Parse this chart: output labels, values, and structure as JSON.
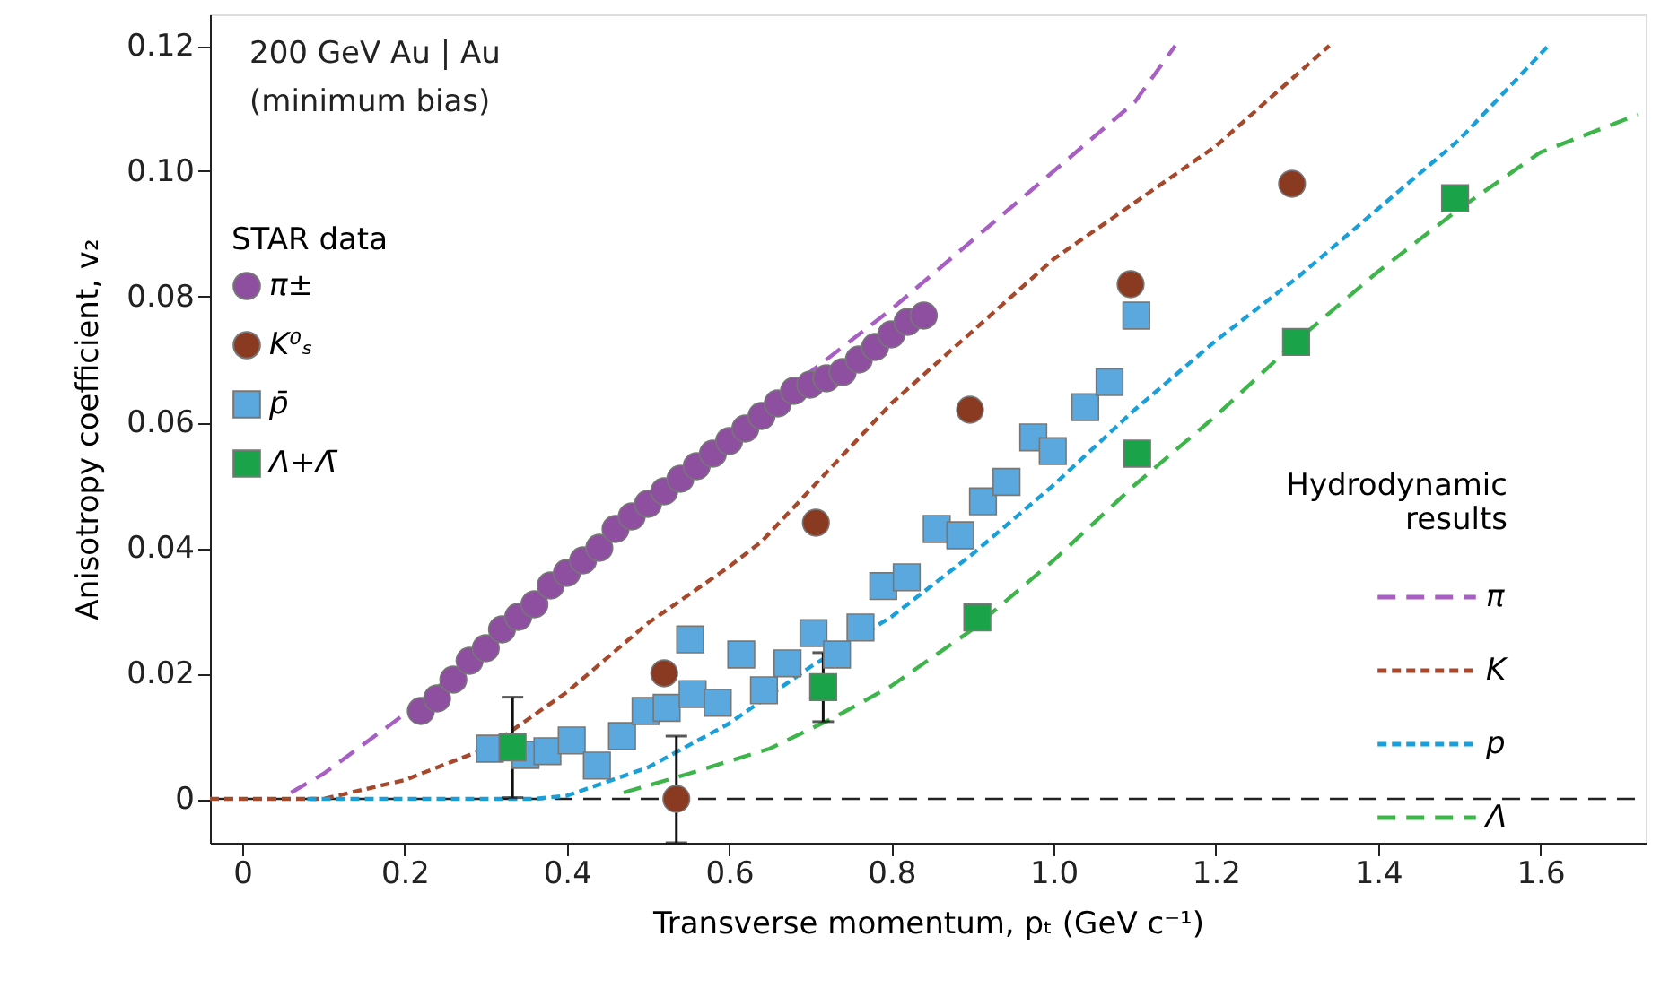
{
  "chart_data": {
    "type": "scatter",
    "xlabel": "Transverse momentum, pₜ (GeV c⁻¹)",
    "ylabel": "Anisotropy coefficient, v₂",
    "legend_title": "STAR data",
    "annotations": [
      "200 GeV Au | Au",
      "(minimum bias)",
      "Hydrodynamic results"
    ],
    "xlim": [
      -0.04,
      1.73
    ],
    "ylim": [
      -0.007,
      0.125
    ],
    "xticks": [
      0,
      0.2,
      0.4,
      0.6,
      0.8,
      {
        "value": 1,
        "label": "1.0"
      },
      1.2,
      1.4,
      1.6
    ],
    "yticks": [
      0,
      0.02,
      0.04,
      0.06,
      0.08,
      {
        "value": 0.1,
        "label": "0.10"
      },
      0.12
    ],
    "grid": false,
    "legend": "left",
    "ref_lines": [
      {
        "axis": "y",
        "value": 0,
        "label": null,
        "color": "#222222",
        "line_style": "dashed"
      }
    ],
    "series": [
      {
        "name": "π±",
        "marker": "circle",
        "color": "#8e4fa0",
        "x": [
          0.22,
          0.24,
          0.26,
          0.28,
          0.3,
          0.32,
          0.34,
          0.36,
          0.38,
          0.4,
          0.42,
          0.44,
          0.46,
          0.48,
          0.5,
          0.52,
          0.54,
          0.56,
          0.58,
          0.6,
          0.62,
          0.64,
          0.66,
          0.68,
          0.7,
          0.72,
          0.74,
          0.76,
          0.78,
          0.8,
          0.82,
          0.84
        ],
        "values": [
          0.014,
          0.016,
          0.019,
          0.022,
          0.024,
          0.027,
          0.029,
          0.031,
          0.034,
          0.036,
          0.038,
          0.04,
          0.043,
          0.045,
          0.047,
          0.049,
          0.051,
          0.053,
          0.055,
          0.057,
          0.059,
          0.061,
          0.063,
          0.065,
          0.066,
          0.067,
          0.068,
          0.07,
          0.072,
          0.074,
          0.076,
          0.077
        ]
      },
      {
        "name": "K⁰ₛ",
        "marker": "circle",
        "color": "#8b3a22",
        "x": [
          0.52,
          0.535,
          0.707,
          0.897,
          1.095,
          1.294
        ],
        "values": [
          0.02,
          0,
          0.044,
          0.062,
          0.082,
          0.098
        ],
        "errors": [
          null,
          [
            -0.007,
            0.01
          ],
          null,
          null,
          null,
          null
        ]
      },
      {
        "name": "p̄",
        "marker": "square",
        "color": "#5ba8de",
        "x": [
          0.305,
          0.349,
          0.376,
          0.406,
          0.437,
          0.468,
          0.497,
          0.523,
          0.552,
          0.555,
          0.586,
          0.615,
          0.643,
          0.672,
          0.704,
          0.733,
          0.762,
          0.79,
          0.819,
          0.856,
          0.885,
          0.913,
          0.942,
          0.975,
          0.999,
          1.039,
          1.069,
          1.102
        ],
        "values": [
          0.008,
          0.007,
          0.0076,
          0.0093,
          0.0053,
          0.01,
          0.014,
          0.0145,
          0.0254,
          0.0167,
          0.0153,
          0.023,
          0.0173,
          0.0216,
          0.0264,
          0.023,
          0.0273,
          0.0339,
          0.0353,
          0.043,
          0.042,
          0.0474,
          0.0505,
          0.0576,
          0.0554,
          0.0624,
          0.0664,
          0.077
        ]
      },
      {
        "name": "Λ+Λ̄",
        "marker": "square",
        "color": "#1ba34a",
        "x": [
          0.333,
          0.716,
          0.906,
          1.103,
          1.299,
          1.495
        ],
        "values": [
          0.0082,
          0.0178,
          0.0289,
          0.055,
          0.0728,
          0.0957
        ],
        "errors": [
          0.008,
          0.0055,
          null,
          null,
          null,
          null
        ]
      },
      {
        "name": "π",
        "type": "line",
        "line_style": "dashed",
        "marker": "none",
        "color": "#a75fc4",
        "x": [
          0.06,
          0.1,
          0.2,
          0.3,
          0.4,
          0.5,
          0.6,
          0.7,
          0.8,
          0.9,
          1.0,
          1.1,
          1.15
        ],
        "values": [
          0.001,
          0.004,
          0.0135,
          0.024,
          0.036,
          0.047,
          0.058,
          0.068,
          0.078,
          0.089,
          0.1,
          0.111,
          0.12
        ]
      },
      {
        "name": "K",
        "type": "line",
        "line_style": "dotted",
        "marker": "none",
        "color": "#a5482b",
        "x": [
          -0.04,
          0.1,
          0.2,
          0.3,
          0.4,
          0.5,
          0.6,
          0.64,
          0.8,
          1.0,
          1.2,
          1.34
        ],
        "values": [
          0,
          0,
          0.003,
          0.008,
          0.017,
          0.028,
          0.037,
          0.041,
          0.063,
          0.086,
          0.104,
          0.12
        ]
      },
      {
        "name": "p",
        "type": "line",
        "line_style": "dotted",
        "marker": "none",
        "color": "#1a9fd8",
        "x": [
          0.08,
          0.36,
          0.4,
          0.5,
          0.6,
          0.7,
          0.8,
          0.9,
          1.0,
          1.1,
          1.2,
          1.3,
          1.4,
          1.5,
          1.61
        ],
        "values": [
          0,
          0,
          0.0005,
          0.005,
          0.012,
          0.021,
          0.029,
          0.039,
          0.05,
          0.062,
          0.073,
          0.083,
          0.094,
          0.105,
          0.12
        ]
      },
      {
        "name": "Λ",
        "type": "line",
        "line_style": "dashed",
        "marker": "none",
        "color": "#3db54a",
        "x": [
          0.47,
          0.55,
          0.65,
          0.73,
          0.8,
          0.9,
          1.0,
          1.1,
          1.2,
          1.3,
          1.4,
          1.5,
          1.6,
          1.72
        ],
        "values": [
          0.001,
          0.004,
          0.008,
          0.013,
          0.018,
          0.027,
          0.038,
          0.05,
          0.061,
          0.073,
          0.084,
          0.094,
          0.103,
          0.109
        ]
      }
    ]
  }
}
